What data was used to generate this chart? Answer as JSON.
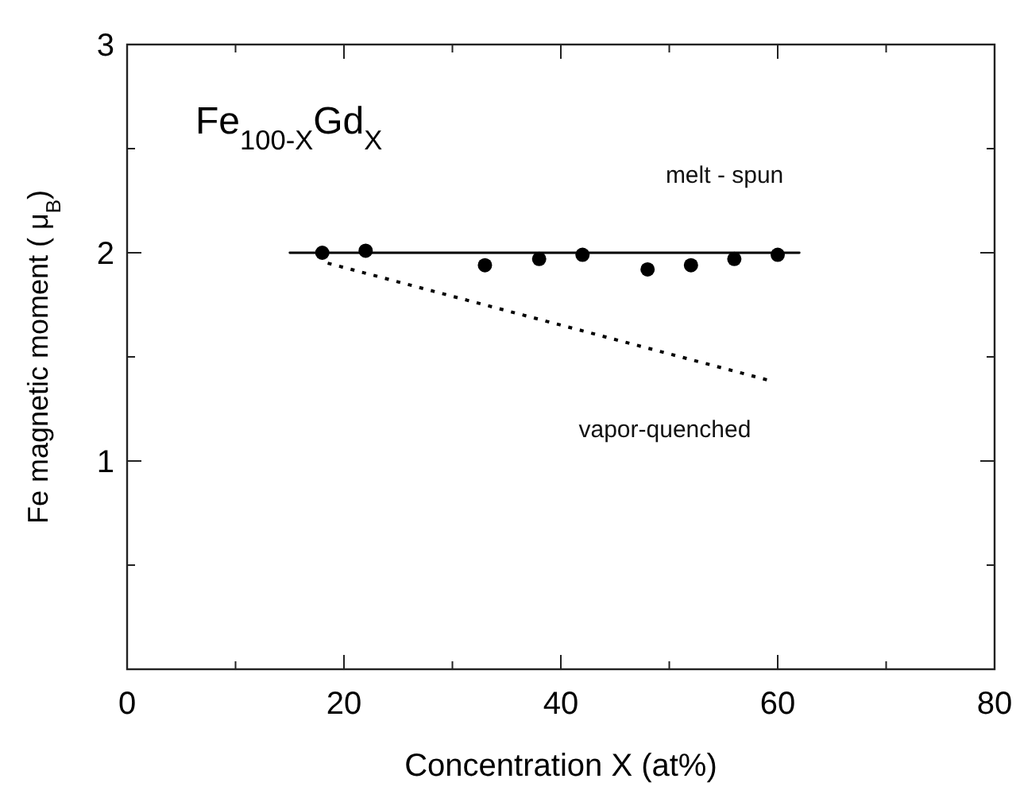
{
  "chart_data": {
    "type": "scatter",
    "xlabel": "Concentration X  (at%)",
    "ylabel": "Fe magnetic moment ( μ$_{B}$)",
    "annotations": [
      "Fe$_{100-X}$Gd$_{X}$"
    ],
    "xlim": [
      0,
      80
    ],
    "xticks": [
      0,
      {
        "value": 10,
        "label": null
      },
      20,
      {
        "value": 30,
        "label": null
      },
      40,
      {
        "value": 50,
        "label": null
      },
      60,
      {
        "value": 70,
        "label": null
      },
      80
    ],
    "ylim": [
      0,
      3
    ],
    "yticks": [
      {
        "value": 0,
        "label": null
      },
      {
        "value": 0.5,
        "label": null
      },
      1,
      {
        "value": 1.5,
        "label": null
      },
      2,
      {
        "value": 2.5,
        "label": null
      },
      3
    ],
    "grid": false,
    "series": [
      {
        "color": "#000000",
        "marker": "circle",
        "x": [
          18,
          22,
          33,
          38,
          42,
          48,
          52,
          56,
          60
        ],
        "values": [
          2.0,
          2.01,
          1.94,
          1.97,
          1.99,
          1.92,
          1.94,
          1.97,
          1.99
        ]
      },
      {
        "type": "line",
        "name": "melt - spun",
        "color": "#000000",
        "line_style": "solid",
        "x": [
          15,
          62
        ],
        "values": [
          2.0,
          2.0
        ]
      },
      {
        "type": "line",
        "name": "vapor-quenched",
        "color": "#000000",
        "line_style": "dotted",
        "x": [
          18.5,
          59
        ],
        "values": [
          1.95,
          1.39
        ]
      }
    ]
  }
}
